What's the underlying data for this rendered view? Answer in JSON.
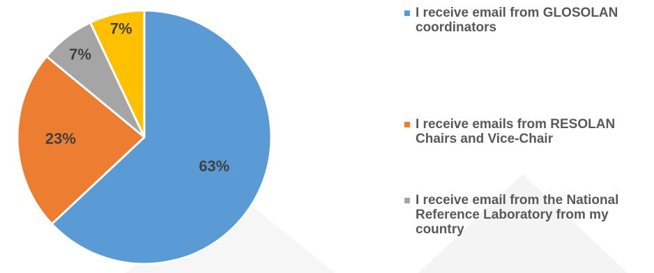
{
  "chart_data": {
    "type": "pie",
    "title": "",
    "series": [
      {
        "name": "I receive email from GLOSOLAN coordinators",
        "value": 63,
        "label": "63%",
        "color": "#5B9BD5"
      },
      {
        "name": "I receive emails from RESOLAN Chairs and Vice-Chair",
        "value": 23,
        "label": "23%",
        "color": "#ED7D31"
      },
      {
        "name": "I receive email from the National Reference Laboratory from my country",
        "value": 7,
        "label": "7%",
        "color": "#A5A5A5"
      },
      {
        "name": "",
        "value": 7,
        "label": "7%",
        "color": "#FFC000"
      }
    ],
    "legend_position": "right"
  },
  "legend": {
    "items": [
      {
        "text": "I receive email from GLOSOLAN coordinators",
        "color": "#5B9BD5"
      },
      {
        "text": "I receive emails from RESOLAN Chairs and Vice-Chair",
        "color": "#ED7D31"
      },
      {
        "text": "I receive email from the National Reference Laboratory from my country",
        "color": "#A5A5A5"
      }
    ]
  }
}
